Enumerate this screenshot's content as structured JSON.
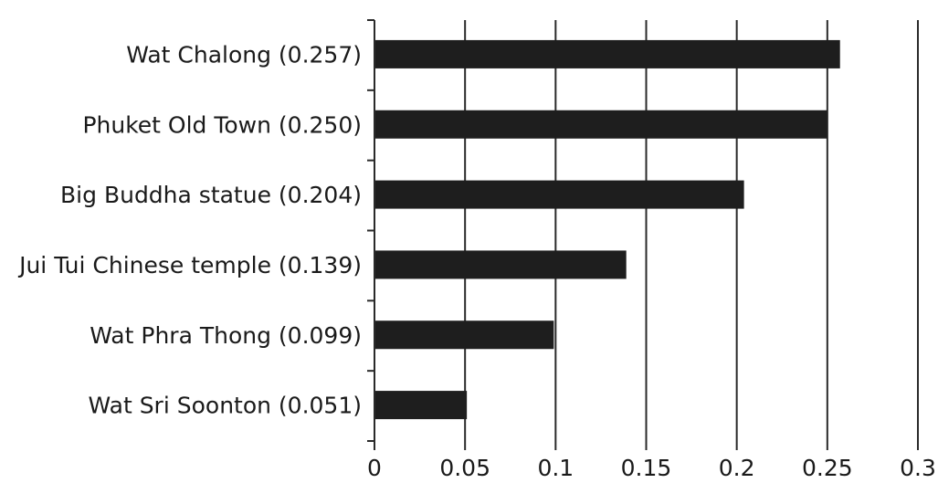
{
  "chart_data": {
    "type": "bar",
    "orientation": "horizontal",
    "categories": [
      "Wat Chalong (0.257)",
      "Phuket Old Town (0.250)",
      "Big Buddha statue (0.204)",
      "Jui Tui Chinese temple (0.139)",
      "Wat Phra Thong (0.099)",
      "Wat Sri Soonton (0.051)"
    ],
    "values": [
      0.257,
      0.25,
      0.204,
      0.139,
      0.099,
      0.051
    ],
    "xlim": [
      0,
      0.3
    ],
    "xticks": [
      "0",
      "0.05",
      "0.1",
      "0.15",
      "0.2",
      "0.25",
      "0.3"
    ],
    "grid": "vertical",
    "legend": "none",
    "bar_color": "#1e1e1e",
    "title": "",
    "xlabel": "",
    "ylabel": ""
  }
}
